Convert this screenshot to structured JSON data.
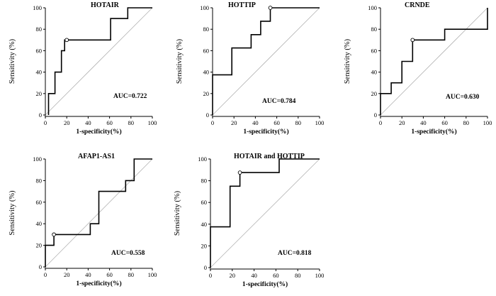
{
  "chart_data": [
    {
      "type": "line",
      "title": "HOTAIR",
      "xlabel": "1-specificity(%)",
      "ylabel": "Sensitivity (%)",
      "xlim": [
        0,
        100
      ],
      "ylim": [
        0,
        100
      ],
      "xticks": [
        0,
        20,
        40,
        60,
        80,
        100
      ],
      "yticks": [
        0,
        20,
        40,
        60,
        80,
        100
      ],
      "auc_label": "AUC=0.722",
      "roc": [
        [
          3,
          0
        ],
        [
          3,
          20
        ],
        [
          9,
          20
        ],
        [
          9,
          40
        ],
        [
          15,
          40
        ],
        [
          15,
          60
        ],
        [
          18,
          60
        ],
        [
          18,
          70
        ],
        [
          61,
          70
        ],
        [
          61,
          90
        ],
        [
          77,
          90
        ],
        [
          77,
          100
        ],
        [
          100,
          100
        ]
      ],
      "optimal_point": [
        20,
        70
      ]
    },
    {
      "type": "line",
      "title": "HOTTIP",
      "xlabel": "1-specificity(%)",
      "ylabel": "Sensitivity (%)",
      "xlim": [
        0,
        100
      ],
      "ylim": [
        0,
        100
      ],
      "xticks": [
        0,
        20,
        40,
        60,
        80,
        100
      ],
      "yticks": [
        0,
        20,
        40,
        60,
        80,
        100
      ],
      "auc_label": "AUC=0.784",
      "roc": [
        [
          0,
          0
        ],
        [
          0,
          37.5
        ],
        [
          18,
          37.5
        ],
        [
          18,
          62.5
        ],
        [
          36,
          62.5
        ],
        [
          36,
          75
        ],
        [
          45,
          75
        ],
        [
          45,
          87.5
        ],
        [
          54,
          87.5
        ],
        [
          54,
          100
        ],
        [
          100,
          100
        ]
      ],
      "optimal_point": [
        54,
        100
      ]
    },
    {
      "type": "line",
      "title": "CRNDE",
      "xlabel": "1-specificity(%)",
      "ylabel": "Sensitivity (%)",
      "xlim": [
        0,
        100
      ],
      "ylim": [
        0,
        100
      ],
      "xticks": [
        0,
        20,
        40,
        60,
        80,
        100
      ],
      "yticks": [
        0,
        20,
        40,
        60,
        80,
        100
      ],
      "auc_label": "AUC=0.630",
      "roc": [
        [
          0,
          0
        ],
        [
          0,
          20
        ],
        [
          10,
          20
        ],
        [
          10,
          30
        ],
        [
          20,
          30
        ],
        [
          20,
          50
        ],
        [
          30,
          50
        ],
        [
          30,
          70
        ],
        [
          60,
          70
        ],
        [
          60,
          80
        ],
        [
          100,
          80
        ],
        [
          100,
          100
        ]
      ],
      "optimal_point": [
        30,
        70
      ]
    },
    {
      "type": "line",
      "title": "AFAP1-AS1",
      "xlabel": "1-specificity(%)",
      "ylabel": "Sensitivity (%)",
      "xlim": [
        0,
        100
      ],
      "ylim": [
        0,
        100
      ],
      "xticks": [
        0,
        20,
        40,
        60,
        80,
        100
      ],
      "yticks": [
        0,
        20,
        40,
        60,
        80,
        100
      ],
      "auc_label": "AUC=0.558",
      "roc": [
        [
          0,
          0
        ],
        [
          0,
          20
        ],
        [
          8,
          20
        ],
        [
          8,
          30
        ],
        [
          42,
          30
        ],
        [
          42,
          40
        ],
        [
          50,
          40
        ],
        [
          50,
          70
        ],
        [
          75,
          70
        ],
        [
          75,
          80
        ],
        [
          83,
          80
        ],
        [
          83,
          100
        ],
        [
          100,
          100
        ]
      ],
      "optimal_point": [
        8,
        30
      ]
    },
    {
      "type": "line",
      "title": "HOTAIR and HOTTIP",
      "xlabel": "1-specificity(%)",
      "ylabel": "Sensitivity (%)",
      "xlim": [
        0,
        100
      ],
      "ylim": [
        0,
        100
      ],
      "xticks": [
        0,
        20,
        40,
        60,
        80,
        100
      ],
      "yticks": [
        0,
        20,
        40,
        60,
        80,
        100
      ],
      "auc_label": "AUC=0.818",
      "roc": [
        [
          0,
          0
        ],
        [
          0,
          37.5
        ],
        [
          18,
          37.5
        ],
        [
          18,
          75
        ],
        [
          27,
          75
        ],
        [
          27,
          87.5
        ],
        [
          63,
          87.5
        ],
        [
          63,
          100
        ],
        [
          100,
          100
        ]
      ],
      "optimal_point": [
        27,
        87.5
      ]
    }
  ]
}
